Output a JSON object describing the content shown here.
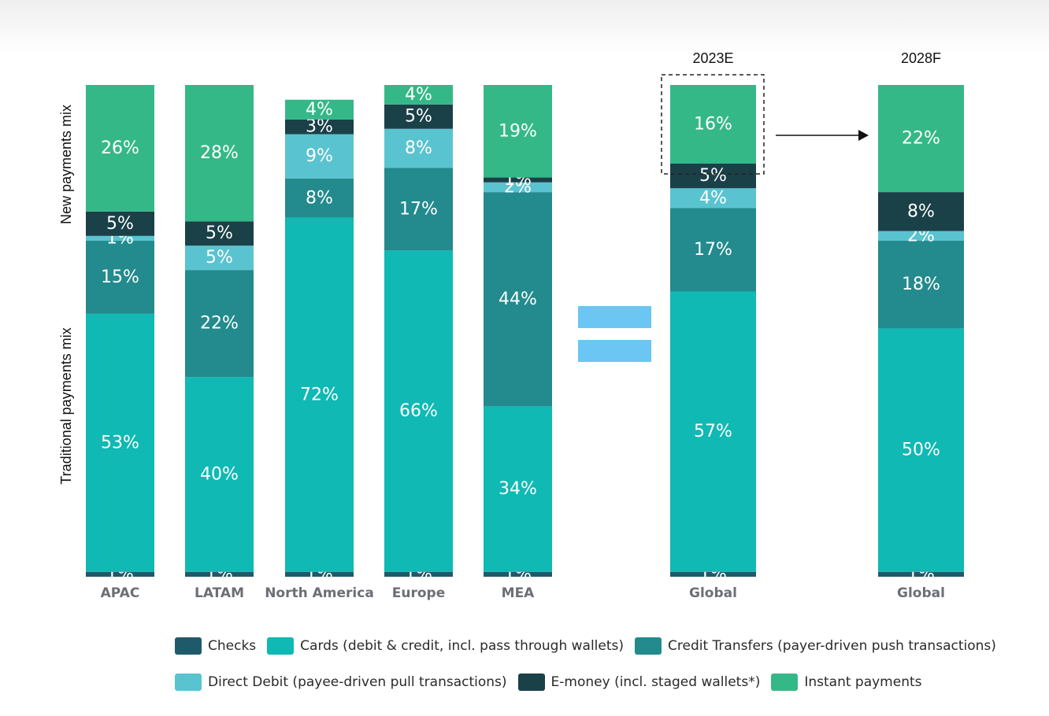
{
  "chart_data": {
    "type": "bar",
    "stacked": true,
    "normalized": true,
    "categories": [
      "APAC",
      "LATAM",
      "North America",
      "Europe",
      "MEA",
      "Global",
      "Global"
    ],
    "period_labels": [
      "",
      "",
      "",
      "",
      "",
      "2023E",
      "2028F"
    ],
    "series": [
      {
        "name": "Checks",
        "color": "#1f5a6b",
        "values": [
          1,
          1,
          1,
          1,
          1,
          1,
          1
        ],
        "labels": [
          "1%",
          "1%",
          "1%",
          "1%",
          "1%",
          "1%",
          "1%"
        ]
      },
      {
        "name": "Cards (debit & credit, incl. pass through wallets)",
        "color": "#10b9b3",
        "values": [
          53,
          40,
          72,
          66,
          34,
          57,
          50
        ],
        "labels": [
          "53%",
          "40%",
          "72%",
          "66%",
          "34%",
          "57%",
          "50%"
        ]
      },
      {
        "name": "Credit Transfers (payer-driven push transactions)",
        "color": "#238a8d",
        "values": [
          15,
          22,
          8,
          17,
          44,
          17,
          18
        ],
        "labels": [
          "15%",
          "22%",
          "8%",
          "17%",
          "44%",
          "17%",
          "18%"
        ]
      },
      {
        "name": "Direct Debit (payee-driven pull transactions)",
        "color": "#5ac3d0",
        "values": [
          1,
          5,
          9,
          8,
          2,
          4,
          2
        ],
        "labels": [
          "1%",
          "5%",
          "9%",
          "8%",
          "2%",
          "4%",
          "2%"
        ]
      },
      {
        "name": "E-money (incl. staged wallets*)",
        "color": "#1a4048",
        "values": [
          5,
          5,
          3,
          5,
          1,
          5,
          8
        ],
        "labels": [
          "5%",
          "5%",
          "3%",
          "5%",
          "1%",
          "5%",
          "8%"
        ]
      },
      {
        "name": "Instant payments",
        "color": "#35b888",
        "values": [
          26,
          28,
          4,
          4,
          19,
          16,
          22
        ],
        "labels": [
          "26%",
          "28%",
          "4%",
          "4%",
          "19%",
          "16%",
          "22%"
        ]
      }
    ],
    "ylabels": [
      "New payments mix",
      "Traditional payments mix"
    ],
    "legend_position": "bottom",
    "grid": false,
    "equals_color": "#6cc6f3"
  }
}
